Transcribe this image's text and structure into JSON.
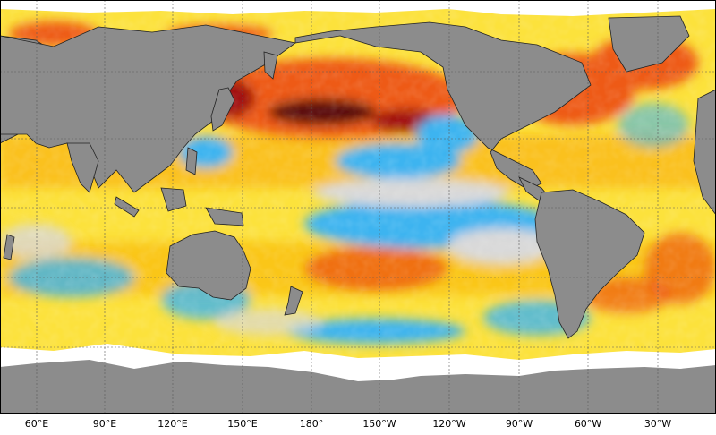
{
  "map": {
    "type": "sea-surface-temperature-anomaly",
    "projection": "equirectangular",
    "center_longitude": 180,
    "land_color": "#8c8c8c",
    "ice_color": "#ffffff",
    "grid_color": "#5a5a5a",
    "palette": {
      "strong_cool": "#1e6fd9",
      "cool": "#3cb4f0",
      "near_zero": "#d9d9d9",
      "mild_warm": "#fce23c",
      "warm": "#f9b40a",
      "hot": "#ee5a14",
      "very_hot": "#a01010",
      "extreme": "#5a0a0a"
    },
    "x_axis": {
      "tick_labels": [
        "60°E",
        "90°E",
        "120°E",
        "150°E",
        "180°",
        "150°W",
        "120°W",
        "90°W",
        "60°W",
        "30°W"
      ],
      "tick_longitudes": [
        60,
        90,
        120,
        150,
        180,
        210,
        240,
        270,
        300,
        330
      ]
    }
  }
}
